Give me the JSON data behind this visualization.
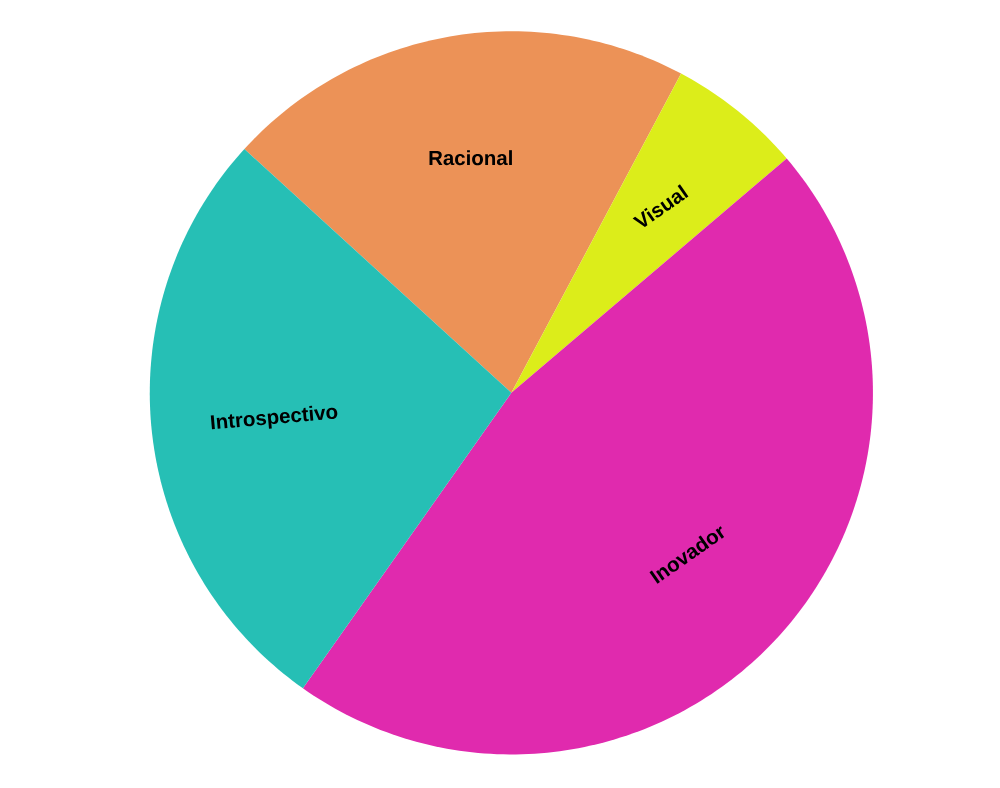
{
  "chart_data": {
    "type": "pie",
    "categories": [
      "Racional",
      "Visual",
      "Inovador",
      "Introspectivo"
    ],
    "values": [
      21,
      6,
      46,
      27
    ],
    "colors": [
      "#ec9257",
      "#dced1a",
      "#e02aae",
      "#26bfb5"
    ]
  }
}
